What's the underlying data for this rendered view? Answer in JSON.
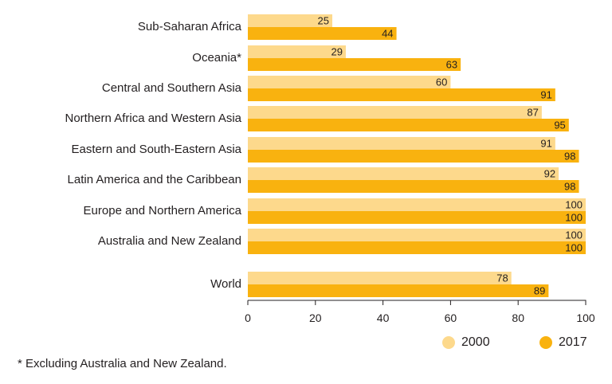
{
  "chart_data": {
    "type": "bar",
    "orientation": "horizontal",
    "categories": [
      "Sub-Saharan Africa",
      "Oceania*",
      "Central and Southern Asia",
      "Northern Africa and Western Asia",
      "Eastern and South-Eastern Asia",
      "Latin America and the Caribbean",
      "Europe and Northern America",
      "Australia and New Zealand",
      "World"
    ],
    "series": [
      {
        "name": "2000",
        "values": [
          25,
          29,
          60,
          87,
          91,
          92,
          100,
          100,
          78
        ],
        "color": "#fdd98c"
      },
      {
        "name": "2017",
        "values": [
          44,
          63,
          91,
          95,
          98,
          98,
          100,
          100,
          89
        ],
        "color": "#f9b20f"
      }
    ],
    "xlim": [
      0,
      100
    ],
    "xticks": [
      0,
      20,
      40,
      60,
      80,
      100
    ],
    "legend_position": "bottom-right",
    "footnote": "* Excluding Australia and New Zealand."
  }
}
